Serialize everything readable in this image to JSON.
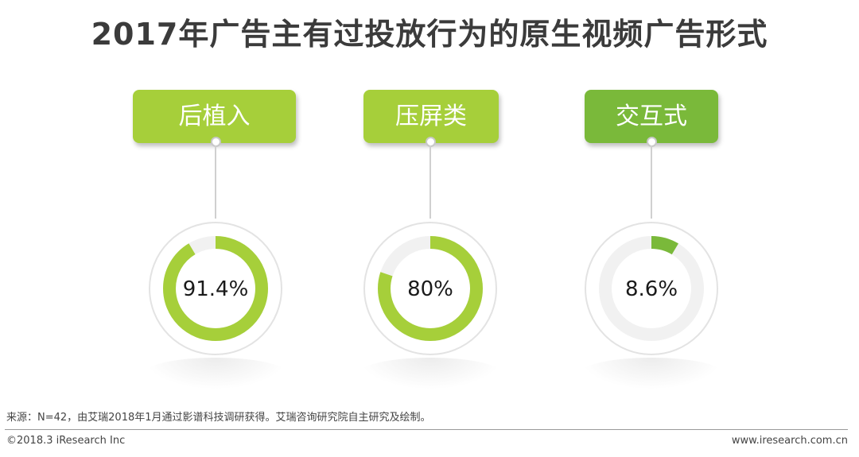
{
  "title": "2017年广告主有过投放行为的原生视频广告形式",
  "chart_data": {
    "type": "donut",
    "categories": [
      "后植入",
      "压屏类",
      "交互式"
    ],
    "values": [
      91.4,
      80,
      8.6
    ],
    "value_labels": [
      "91.4%",
      "80%",
      "8.6%"
    ],
    "unit": "%",
    "colors": {
      "card": [
        "#a6cf3a",
        "#a6cf3a",
        "#7ab93a"
      ],
      "ring": [
        "#a6cf3a",
        "#a6cf3a",
        "#7ab93a"
      ],
      "track": "#f1f1f1"
    }
  },
  "footer": {
    "source": "来源：N=42，由艾瑞2018年1月通过影谱科技调研获得。艾瑞咨询研究院自主研究及绘制。",
    "copyright": "©2018.3 iResearch Inc",
    "website": "www.iresearch.com.cn"
  }
}
